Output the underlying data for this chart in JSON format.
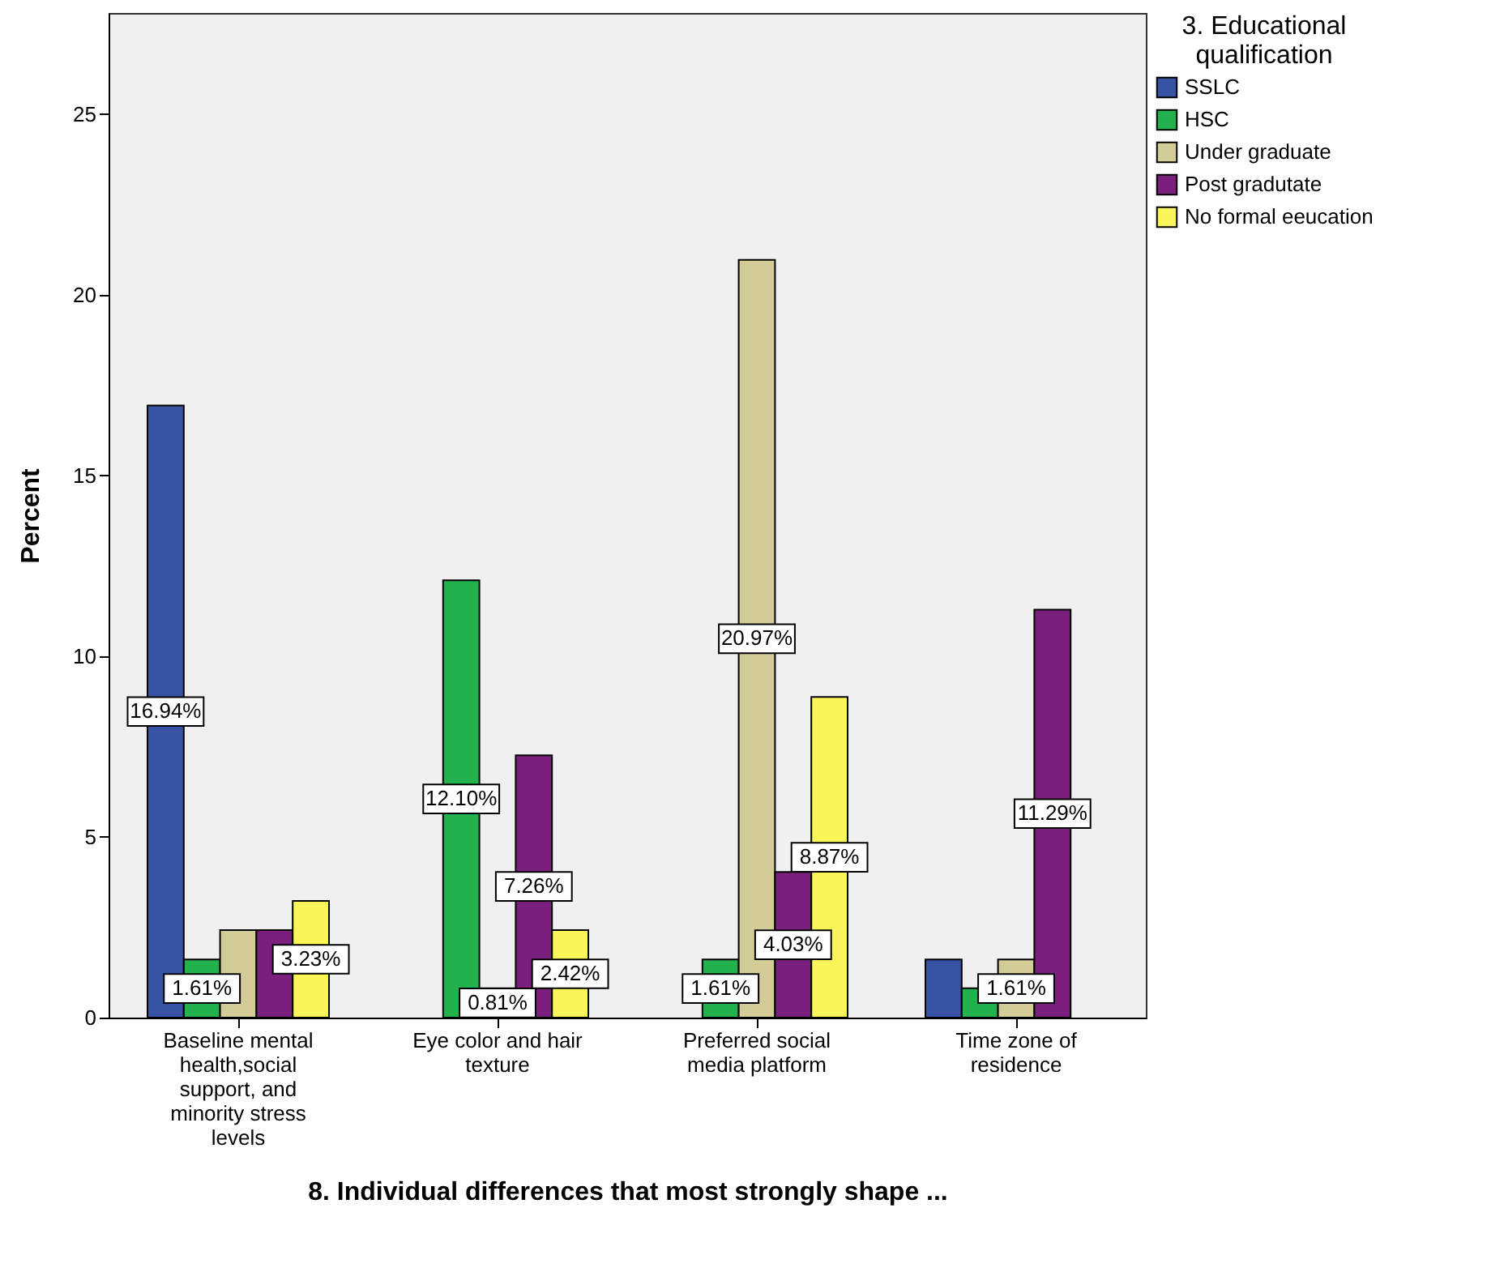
{
  "chart_data": {
    "type": "bar",
    "xlabel": "8. Individual differences that most strongly shape ...",
    "ylabel": "Percent",
    "legend_title": "3. Educational qualification",
    "legend": "right",
    "grid": false,
    "categories": [
      "Baseline mental health,social support, and minority stress levels",
      "Eye color and hair texture",
      "Preferred social media platform",
      "Time zone of residence"
    ],
    "ylim": [
      0,
      27.8
    ],
    "yticks": [
      0,
      5,
      10,
      15,
      20,
      25
    ],
    "series": [
      {
        "name": "SSLC",
        "color": "#3953a4",
        "values": [
          16.94,
          null,
          null,
          1.61
        ],
        "value_labels": [
          "16.94%",
          null,
          null,
          null
        ]
      },
      {
        "name": "HSC",
        "color": "#23b14d",
        "values": [
          1.61,
          12.1,
          1.61,
          0.81
        ],
        "value_labels": [
          "1.61%",
          "12.10%",
          "1.61%",
          null
        ]
      },
      {
        "name": "Under graduate",
        "color": "#d3cc96",
        "values": [
          2.42,
          0.81,
          20.97,
          1.61
        ],
        "value_labels": [
          null,
          "0.81%",
          "20.97%",
          "1.61%"
        ]
      },
      {
        "name": "Post gradutate",
        "color": "#7a1f7e",
        "values": [
          2.42,
          7.26,
          4.03,
          11.29
        ],
        "value_labels": [
          null,
          "7.26%",
          "4.03%",
          "11.29%"
        ]
      },
      {
        "name": "No formal eeucation",
        "color": "#faf65a",
        "values": [
          3.23,
          2.42,
          8.87,
          null
        ],
        "value_labels": [
          "3.23%",
          "2.42%",
          "8.87%",
          null
        ]
      }
    ]
  }
}
